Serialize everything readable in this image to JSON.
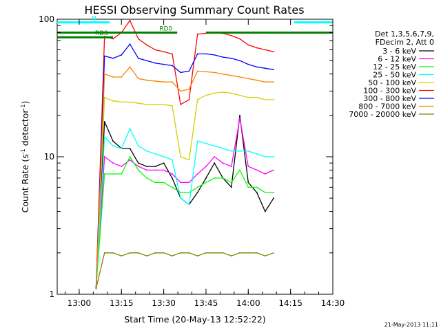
{
  "chart_data": {
    "type": "line",
    "title": "HESSI Observing Summary Count Rates",
    "xlabel": "Start Time (20-May-13 12:52:22)",
    "ylabel_main": "Count Rate (s",
    "ylabel_sup1": "-1",
    "ylabel_mid": " detector",
    "ylabel_sup2": "-1",
    "ylabel_end": ")",
    "y_scale": "log",
    "ylim": [
      1,
      100
    ],
    "y_ticks": [
      {
        "value": 1,
        "label": "1"
      },
      {
        "value": 10,
        "label": "10"
      },
      {
        "value": 100,
        "label": "100"
      }
    ],
    "xlim": [
      12.87,
      14.5
    ],
    "x_ticks": [
      {
        "value": 13.0,
        "label": "13:00"
      },
      {
        "value": 13.25,
        "label": "13:15"
      },
      {
        "value": 13.5,
        "label": "13:30"
      },
      {
        "value": 13.75,
        "label": "13:45"
      },
      {
        "value": 14.0,
        "label": "14:00"
      },
      {
        "value": 14.25,
        "label": "14:15"
      },
      {
        "value": 14.5,
        "label": "14:30"
      }
    ],
    "legend_placement": "right",
    "legend_header": [
      "Det 1,3,5,6,7,9,",
      "FDecim 2, Att 0"
    ],
    "series": [
      {
        "name": "3 - 6 keV",
        "color": "#000000",
        "x": [
          13.1,
          13.15,
          13.2,
          13.25,
          13.3,
          13.35,
          13.4,
          13.45,
          13.5,
          13.55,
          13.6,
          13.65,
          13.7,
          13.75,
          13.8,
          13.85,
          13.9,
          13.95,
          14.0,
          14.05,
          14.1,
          14.15
        ],
        "y": [
          1.1,
          18,
          13,
          11.5,
          11.5,
          9,
          8.5,
          8.5,
          9,
          7,
          5,
          4.5,
          5.5,
          7,
          9,
          7,
          6,
          20,
          6.5,
          5.5,
          4,
          5
        ]
      },
      {
        "name": "6 - 12 keV",
        "color": "#ff00ff",
        "x": [
          13.1,
          13.15,
          13.2,
          13.25,
          13.3,
          13.35,
          13.4,
          13.45,
          13.5,
          13.55,
          13.6,
          13.65,
          13.7,
          13.75,
          13.8,
          13.85,
          13.9,
          13.95,
          14.0,
          14.05,
          14.1,
          14.15
        ],
        "y": [
          1.1,
          10,
          9,
          8.5,
          9.5,
          8.5,
          8,
          8,
          8,
          7.5,
          6.5,
          6.5,
          7.5,
          8.5,
          10,
          9,
          8.5,
          19,
          8.5,
          8,
          7.5,
          8
        ]
      },
      {
        "name": "12 - 25 keV",
        "color": "#00ff00",
        "x": [
          13.1,
          13.15,
          13.2,
          13.25,
          13.3,
          13.35,
          13.4,
          13.45,
          13.5,
          13.55,
          13.6,
          13.65,
          13.7,
          13.75,
          13.8,
          13.85,
          13.9,
          13.95,
          14.0,
          14.05,
          14.1,
          14.15
        ],
        "y": [
          1.1,
          7.5,
          7.5,
          7.5,
          10,
          8,
          7,
          6.5,
          6.5,
          6,
          5.5,
          5.5,
          6,
          6.5,
          7,
          7,
          6.5,
          8,
          6,
          6,
          5.5,
          5.5
        ]
      },
      {
        "name": "25 - 50 keV",
        "color": "#00ffff",
        "x": [
          13.1,
          13.15,
          13.2,
          13.25,
          13.3,
          13.35,
          13.4,
          13.45,
          13.5,
          13.55,
          13.6,
          13.65,
          13.7,
          13.75,
          13.8,
          13.85,
          13.9,
          13.95,
          14.0,
          14.05,
          14.1,
          14.15
        ],
        "y": [
          1.1,
          14,
          12,
          11.5,
          16,
          12,
          11,
          10.5,
          10,
          9.5,
          5,
          4.5,
          13,
          12.5,
          12,
          11.5,
          11,
          11,
          11,
          10.5,
          10,
          10
        ]
      },
      {
        "name": "50 - 100 keV",
        "color": "#d0d000",
        "x": [
          13.1,
          13.15,
          13.2,
          13.25,
          13.3,
          13.35,
          13.4,
          13.45,
          13.5,
          13.55,
          13.6,
          13.65,
          13.7,
          13.75,
          13.8,
          13.85,
          13.9,
          13.95,
          14.0,
          14.05,
          14.1,
          14.15
        ],
        "y": [
          1.1,
          27,
          25.5,
          25,
          25,
          24.5,
          24,
          24,
          24,
          23.5,
          10,
          9.5,
          26,
          28,
          29,
          29.5,
          29,
          28,
          27,
          27,
          26,
          26
        ]
      },
      {
        "name": "100 - 300 keV",
        "color": "#ff0000",
        "x": [
          13.1,
          13.15,
          13.2,
          13.25,
          13.3,
          13.35,
          13.4,
          13.45,
          13.5,
          13.55,
          13.6,
          13.65,
          13.7,
          13.75,
          13.8,
          13.85,
          13.9,
          13.95,
          14.0,
          14.05,
          14.1,
          14.15
        ],
        "y": [
          1.1,
          75,
          72,
          80,
          98,
          72,
          65,
          60,
          58,
          56,
          24,
          26,
          78,
          79,
          80,
          79,
          76,
          72,
          65,
          62,
          60,
          58
        ]
      },
      {
        "name": "300 - 800 keV",
        "color": "#0000ff",
        "x": [
          13.1,
          13.15,
          13.2,
          13.25,
          13.3,
          13.35,
          13.4,
          13.45,
          13.5,
          13.55,
          13.6,
          13.65,
          13.7,
          13.75,
          13.8,
          13.85,
          13.9,
          13.95,
          14.0,
          14.05,
          14.1,
          14.15
        ],
        "y": [
          1.1,
          54,
          52,
          55,
          66,
          52,
          50,
          48,
          47,
          46,
          41,
          42,
          56,
          56,
          55,
          53,
          52,
          50,
          47,
          45,
          44,
          43
        ]
      },
      {
        "name": "800 - 7000 keV",
        "color": "#ff8000",
        "x": [
          13.1,
          13.15,
          13.2,
          13.25,
          13.3,
          13.35,
          13.4,
          13.45,
          13.5,
          13.55,
          13.6,
          13.65,
          13.7,
          13.75,
          13.8,
          13.85,
          13.9,
          13.95,
          14.0,
          14.05,
          14.1,
          14.15
        ],
        "y": [
          1.1,
          40,
          38,
          38,
          45,
          37,
          36,
          35.5,
          35,
          35,
          30,
          31,
          42,
          41.5,
          41,
          40,
          39,
          38,
          37,
          36,
          35,
          35
        ]
      },
      {
        "name": "7000 - 20000 keV",
        "color": "#808000",
        "x": [
          13.1,
          13.15,
          13.2,
          13.25,
          13.3,
          13.35,
          13.4,
          13.45,
          13.5,
          13.55,
          13.6,
          13.65,
          13.7,
          13.75,
          13.8,
          13.85,
          13.9,
          13.95,
          14.0,
          14.05,
          14.1,
          14.15
        ],
        "y": [
          1.1,
          2,
          2,
          1.9,
          2,
          2,
          1.9,
          2,
          2,
          1.9,
          2,
          2,
          1.9,
          2,
          2,
          2,
          1.9,
          2,
          2,
          2,
          1.9,
          2
        ]
      }
    ],
    "flags": [
      {
        "label": "N",
        "color": "#00ffff",
        "level": 95,
        "segments": [
          [
            12.87,
            13.18
          ],
          [
            14.27,
            14.5
          ]
        ]
      },
      {
        "label": "RD0",
        "color": "#008000",
        "level": 80,
        "segments": [
          [
            12.87,
            13.58
          ],
          [
            13.75,
            14.5
          ]
        ]
      },
      {
        "label": "RDS",
        "color": "#008000",
        "level": 74,
        "segments": [
          [
            12.87,
            13.2
          ]
        ]
      }
    ],
    "grid": false
  },
  "timestamp": "21-May-2013 11:11"
}
